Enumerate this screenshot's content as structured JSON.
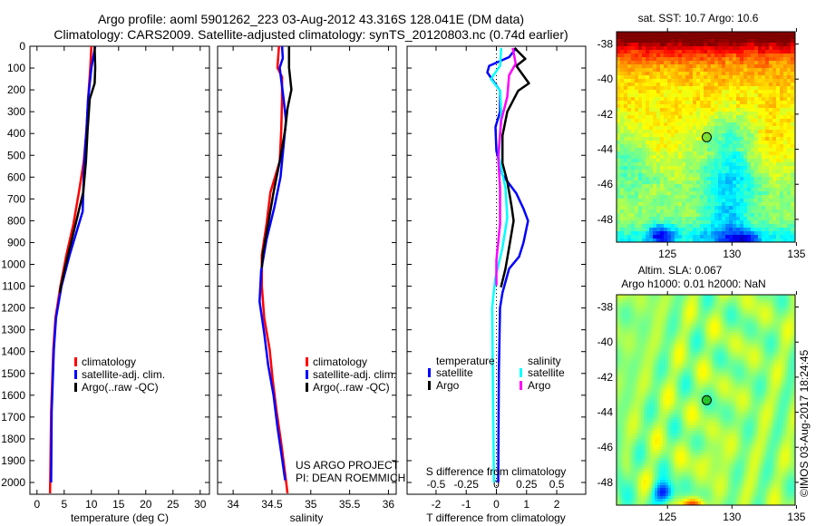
{
  "header": {
    "title_line1": "Argo profile: aoml 5901262_223 03-Aug-2012 43.316S 128.041E (DM data)",
    "title_line2": "Climatology: CARS2009. Satellite-adjusted climatology: synTS_20120803.nc (0.74d earlier)"
  },
  "credits": {
    "project": "US ARGO PROJECT",
    "pi": "PI: DEAN ROEMMICH",
    "stamp": "©IMOS 03-Aug-2017 18:24:45"
  },
  "colors": {
    "climatology": "#ff0000",
    "satellite": "#0000ff",
    "argo": "#000000",
    "s_satellite": "#00ffff",
    "s_argo": "#ff00ff"
  },
  "chart_data": [
    {
      "type": "line",
      "xlabel": "temperature (deg C)",
      "ylabel": "",
      "xlim": [
        -1.3,
        31.7
      ],
      "ylim": [
        2054,
        0
      ],
      "xticks": [
        0,
        5,
        10,
        15,
        20,
        25,
        30
      ],
      "yticks": [
        0,
        100,
        200,
        300,
        400,
        500,
        600,
        700,
        800,
        900,
        1000,
        1100,
        1200,
        1300,
        1400,
        1500,
        1600,
        1700,
        1800,
        1900,
        2000
      ],
      "legend": [
        "climatology",
        "satellite-adj. clim.",
        "Argo(..raw -QC)"
      ],
      "series": [
        {
          "name": "climatology",
          "color": "#ff0000",
          "points": [
            [
              10.0,
              0
            ],
            [
              9.8,
              98
            ],
            [
              9.4,
              241
            ],
            [
              9.1,
              384
            ],
            [
              8.6,
              528
            ],
            [
              7.7,
              670
            ],
            [
              6.7,
              815
            ],
            [
              5.4,
              957
            ],
            [
              4.3,
              1100
            ],
            [
              3.4,
              1245
            ],
            [
              3.0,
              1390
            ],
            [
              2.6,
              1675
            ],
            [
              2.4,
              2050
            ]
          ]
        },
        {
          "name": "satellite-adj. clim.",
          "color": "#0000ff",
          "points": [
            [
              10.7,
              0
            ],
            [
              10.0,
              98
            ],
            [
              9.4,
              241
            ],
            [
              9.1,
              384
            ],
            [
              8.7,
              528
            ],
            [
              8.5,
              670
            ],
            [
              8.4,
              757
            ],
            [
              7.7,
              815
            ],
            [
              6.0,
              957
            ],
            [
              4.5,
              1100
            ],
            [
              3.5,
              1245
            ],
            [
              3.1,
              1390
            ],
            [
              2.7,
              1675
            ],
            [
              2.6,
              2000
            ]
          ]
        },
        {
          "name": "Argo(..raw -QC)",
          "color": "#000000",
          "points": [
            [
              10.6,
              0
            ],
            [
              10.7,
              98
            ],
            [
              10.6,
              170
            ],
            [
              9.7,
              241
            ],
            [
              9.3,
              384
            ],
            [
              9.0,
              528
            ],
            [
              8.5,
              670
            ],
            [
              7.1,
              815
            ],
            [
              5.7,
              957
            ],
            [
              4.4,
              1100
            ],
            [
              4.2,
              1130
            ]
          ]
        }
      ]
    },
    {
      "type": "line",
      "xlabel": "salinity",
      "ylabel": "",
      "xlim": [
        33.8,
        36.1
      ],
      "ylim": [
        2054,
        0
      ],
      "xticks": [
        34,
        34.5,
        35,
        35.5,
        36
      ],
      "legend": [
        "climatology",
        "satellite-adj. clim.",
        "Argo(..raw -QC)"
      ],
      "series": [
        {
          "name": "climatology",
          "color": "#ff0000",
          "points": [
            [
              34.59,
              0
            ],
            [
              34.57,
              98
            ],
            [
              34.63,
              141
            ],
            [
              34.63,
              241
            ],
            [
              34.62,
              384
            ],
            [
              34.6,
              528
            ],
            [
              34.48,
              670
            ],
            [
              34.43,
              815
            ],
            [
              34.37,
              957
            ],
            [
              34.37,
              1100
            ],
            [
              34.4,
              1245
            ],
            [
              34.47,
              1390
            ],
            [
              34.51,
              1530
            ],
            [
              34.56,
              1675
            ],
            [
              34.62,
              1820
            ],
            [
              34.67,
              1960
            ],
            [
              34.7,
              2050
            ]
          ]
        },
        {
          "name": "satellite-adj. clim.",
          "color": "#0000ff",
          "points": [
            [
              34.63,
              0
            ],
            [
              34.64,
              55
            ],
            [
              34.6,
              98
            ],
            [
              34.62,
              155
            ],
            [
              34.65,
              241
            ],
            [
              34.68,
              340
            ],
            [
              34.65,
              455
            ],
            [
              34.61,
              600
            ],
            [
              34.53,
              740
            ],
            [
              34.43,
              885
            ],
            [
              34.36,
              1030
            ],
            [
              34.34,
              1170
            ],
            [
              34.4,
              1315
            ],
            [
              34.45,
              1460
            ],
            [
              34.52,
              1600
            ],
            [
              34.57,
              1745
            ],
            [
              34.63,
              1890
            ],
            [
              34.67,
              1990
            ]
          ]
        },
        {
          "name": "Argo(..raw -QC)",
          "color": "#000000",
          "points": [
            [
              34.72,
              0
            ],
            [
              34.72,
              98
            ],
            [
              34.75,
              199
            ],
            [
              34.7,
              285
            ],
            [
              34.67,
              384
            ],
            [
              34.6,
              528
            ],
            [
              34.52,
              670
            ],
            [
              34.45,
              815
            ],
            [
              34.38,
              957
            ],
            [
              34.37,
              1015
            ]
          ]
        }
      ]
    },
    {
      "type": "line",
      "xlabel": "T difference from climatology",
      "secondary_xlabel": "S difference from climatology",
      "xlim": [
        -2.96,
        2.96
      ],
      "secondary_xlim": [
        -0.74,
        0.74
      ],
      "ylim": [
        2054,
        0
      ],
      "xticks": [
        -2,
        -1,
        0,
        1,
        2
      ],
      "secondary_xticks": [
        -0.5,
        -0.25,
        0,
        0.25,
        0.5
      ],
      "legend_groups": {
        "temperature": {
          "title": "temperature",
          "items": [
            "satellite",
            "Argo"
          ]
        },
        "salinity": {
          "title": "salinity",
          "items": [
            "satellite",
            "Argo"
          ]
        }
      },
      "series": [
        {
          "name": "T satellite",
          "axis": "T",
          "color": "#0000ff",
          "points": [
            [
              0.66,
              8
            ],
            [
              0.42,
              50
            ],
            [
              -0.24,
              90
            ],
            [
              -0.3,
              120
            ],
            [
              -0.15,
              150
            ],
            [
              0.12,
              204
            ],
            [
              0.12,
              300
            ],
            [
              -0.03,
              370
            ],
            [
              0.0,
              480
            ],
            [
              0.2,
              590
            ],
            [
              0.66,
              675
            ],
            [
              0.9,
              745
            ],
            [
              1.05,
              800
            ],
            [
              0.9,
              900
            ],
            [
              0.75,
              965
            ],
            [
              0.42,
              1020
            ],
            [
              0.2,
              1130
            ],
            [
              0.12,
              1200
            ],
            [
              0.08,
              1500
            ],
            [
              0.06,
              2000
            ]
          ]
        },
        {
          "name": "T Argo",
          "axis": "T",
          "color": "#000000",
          "points": [
            [
              0.6,
              8
            ],
            [
              0.96,
              58
            ],
            [
              0.66,
              90
            ],
            [
              1.08,
              170
            ],
            [
              0.72,
              204
            ],
            [
              0.36,
              300
            ],
            [
              0.2,
              410
            ],
            [
              0.2,
              536
            ],
            [
              0.36,
              620
            ],
            [
              0.5,
              730
            ],
            [
              0.57,
              800
            ],
            [
              0.42,
              923
            ],
            [
              0.3,
              1020
            ],
            [
              0.15,
              1105
            ]
          ]
        },
        {
          "name": "S satellite",
          "axis": "S",
          "color": "#00ffff",
          "points": [
            [
              0.04,
              8
            ],
            [
              0.03,
              90
            ],
            [
              -0.045,
              150
            ],
            [
              0.03,
              204
            ],
            [
              0.04,
              300
            ],
            [
              0.02,
              508
            ],
            [
              0.075,
              650
            ],
            [
              0.09,
              786
            ],
            [
              0.05,
              923
            ],
            [
              -0.01,
              1065
            ],
            [
              -0.035,
              1200
            ],
            [
              -0.03,
              1500
            ],
            [
              -0.02,
              2000
            ]
          ]
        },
        {
          "name": "S Argo",
          "axis": "S",
          "color": "#ff00ff",
          "points": [
            [
              0.135,
              8
            ],
            [
              0.16,
              80
            ],
            [
              0.105,
              133
            ],
            [
              0.09,
              232
            ],
            [
              0.04,
              340
            ],
            [
              0.015,
              508
            ],
            [
              0.03,
              650
            ],
            [
              0.03,
              815
            ],
            [
              0.0,
              980
            ],
            [
              0.0,
              1097
            ]
          ]
        }
      ]
    },
    {
      "type": "heatmap",
      "title": "sat. SST: 10.7 Argo: 10.6",
      "xlim": [
        121.05,
        134.9
      ],
      "ylim": [
        -49.3,
        -37.3
      ],
      "xticks": [
        125,
        130,
        135
      ],
      "yticks": [
        -38,
        -40,
        -42,
        -44,
        -46,
        -48
      ],
      "marker": {
        "lon": 128.041,
        "lat": -43.316
      }
    },
    {
      "type": "heatmap",
      "title_line1": "Altim. SLA: 0.067",
      "title_line2": "Argo h1000: 0.01 h2000: NaN",
      "xlim": [
        121.05,
        134.9
      ],
      "ylim": [
        -49.3,
        -37.3
      ],
      "xticks": [
        125,
        130,
        135
      ],
      "yticks": [
        -38,
        -40,
        -42,
        -44,
        -46,
        -48
      ],
      "marker": {
        "lon": 128.041,
        "lat": -43.316
      }
    }
  ]
}
